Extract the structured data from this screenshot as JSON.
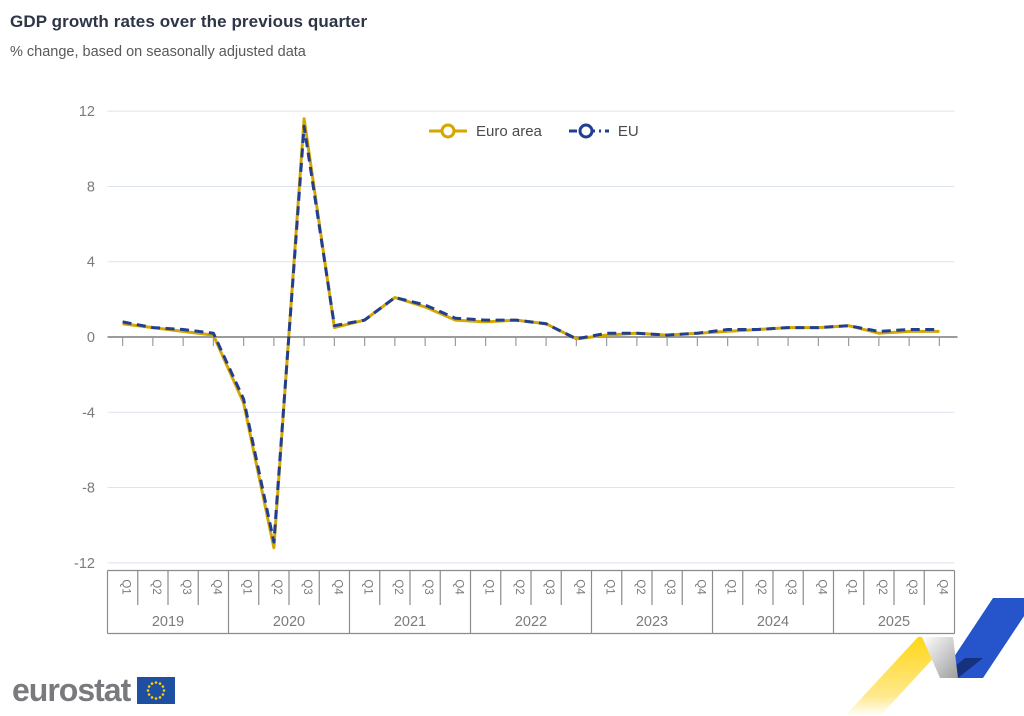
{
  "header": {
    "title": "GDP growth rates over the previous quarter",
    "subtitle": "% change, based on seasonally adjusted data"
  },
  "legend": [
    {
      "label": "Euro area",
      "color": "#D4A600",
      "style": "solid"
    },
    {
      "label": "EU",
      "color": "#223F8F",
      "style": "dashed"
    }
  ],
  "footer": {
    "logo_text": "eurostat"
  },
  "colors": {
    "euro_area_line": "#D4A600",
    "eu_line": "#223F8F",
    "gridline": "#dde4ee",
    "zero_axis": "#9b9b9b",
    "axis_text": "#7b7b7b",
    "table_border": "#8c8c8c",
    "title_text": "#2e3547",
    "subtitle_text": "#595959",
    "flag_blue": "#1E4FA0",
    "flag_star_yellow": "#FFCC00",
    "ribbon_yellow": "#FFD617",
    "ribbon_blue": "#2654CB",
    "ribbon_navy": "#16317D",
    "ribbon_gray": "#ABABAB"
  },
  "chart_data": {
    "type": "line",
    "title": "GDP growth rates over the previous quarter",
    "subtitle": "% change, based on seasonally adjusted data",
    "xlabel": "",
    "ylabel": "% change",
    "ylim": [
      -12,
      12
    ],
    "yticks": [
      12,
      8,
      4,
      0,
      -4,
      -8,
      -12
    ],
    "grid": "horizontal",
    "legend_position": "top-center",
    "years": [
      "2019",
      "2020",
      "2021",
      "2022",
      "2023",
      "2024",
      "2025"
    ],
    "quarters": [
      "Q1",
      "Q2",
      "Q3",
      "Q4"
    ],
    "categories": [
      "2019 Q1",
      "2019 Q2",
      "2019 Q3",
      "2019 Q4",
      "2020 Q1",
      "2020 Q2",
      "2020 Q3",
      "2020 Q4",
      "2021 Q1",
      "2021 Q2",
      "2021 Q3",
      "2021 Q4",
      "2022 Q1",
      "2022 Q2",
      "2022 Q3",
      "2022 Q4",
      "2023 Q1",
      "2023 Q2",
      "2023 Q3",
      "2023 Q4",
      "2024 Q1",
      "2024 Q2",
      "2024 Q3",
      "2024 Q4",
      "2025 Q1",
      "2025 Q2",
      "2025 Q3",
      "2025 Q4"
    ],
    "series": [
      {
        "name": "Euro area",
        "color": "#D4A600",
        "dash": "solid",
        "values": [
          0.7,
          0.5,
          0.3,
          0.1,
          -3.5,
          -11.2,
          11.6,
          0.5,
          0.9,
          2.1,
          1.6,
          0.9,
          0.8,
          0.9,
          0.7,
          -0.1,
          0.1,
          0.2,
          0.1,
          0.2,
          0.3,
          0.4,
          0.5,
          0.5,
          0.6,
          0.2,
          0.3,
          0.3
        ]
      },
      {
        "name": "EU",
        "color": "#223F8F",
        "dash": "dashed",
        "values": [
          0.8,
          0.5,
          0.4,
          0.2,
          -3.3,
          -10.9,
          11.2,
          0.6,
          0.9,
          2.1,
          1.7,
          1.0,
          0.9,
          0.9,
          0.7,
          -0.1,
          0.2,
          0.2,
          0.1,
          0.2,
          0.4,
          0.4,
          0.5,
          0.5,
          0.6,
          0.3,
          0.4,
          0.4
        ]
      }
    ]
  }
}
